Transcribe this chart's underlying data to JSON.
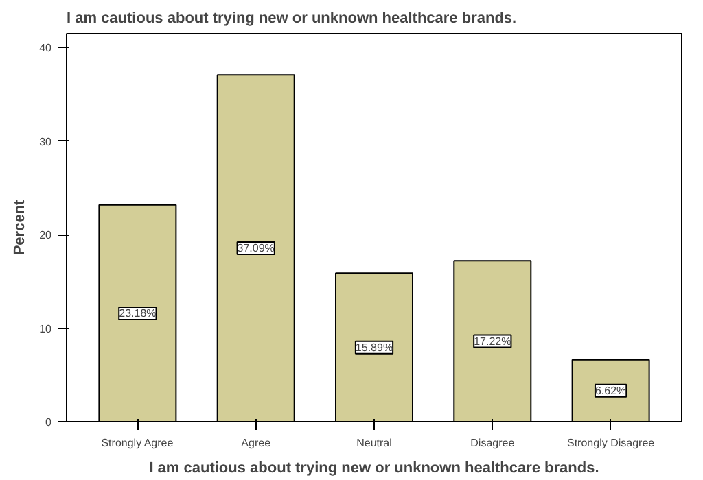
{
  "chart_data": {
    "type": "bar",
    "title": "I am cautious about trying new or unknown healthcare brands.",
    "xlabel": "I am cautious about trying new or unknown healthcare brands.",
    "ylabel": "Percent",
    "categories": [
      "Strongly Agree",
      "Agree",
      "Neutral",
      "Disagree",
      "Strongly Disagree"
    ],
    "values": [
      23.18,
      37.09,
      15.89,
      17.22,
      6.62
    ],
    "value_labels": [
      "23.18%",
      "37.09%",
      "15.89%",
      "17.22%",
      "6.62%"
    ],
    "color": "#d3ce97",
    "ylim": [
      0,
      41.5
    ],
    "yticks": [
      0,
      10,
      20,
      30,
      40
    ],
    "grid": false
  }
}
